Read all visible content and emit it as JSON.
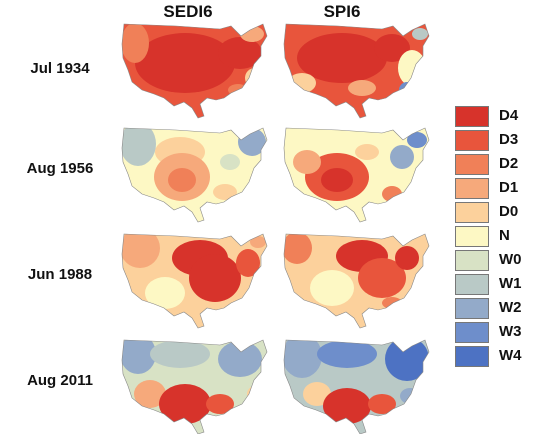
{
  "columns": [
    "SEDI6",
    "SPI6"
  ],
  "rows": [
    "Jul 1934",
    "Aug 1956",
    "Jun 1988",
    "Aug 2011"
  ],
  "legend": [
    {
      "label": "D4",
      "color": "#d7332b"
    },
    {
      "label": "D3",
      "color": "#e8553c"
    },
    {
      "label": "D2",
      "color": "#f08058"
    },
    {
      "label": "D1",
      "color": "#f6a97b"
    },
    {
      "label": "D0",
      "color": "#fcd19c"
    },
    {
      "label": "N",
      "color": "#fdf8c4"
    },
    {
      "label": "W0",
      "color": "#d8e2c5"
    },
    {
      "label": "W1",
      "color": "#b9c9c6"
    },
    {
      "label": "W2",
      "color": "#93aac9"
    },
    {
      "label": "W3",
      "color": "#6e8ecb"
    },
    {
      "label": "W4",
      "color": "#4d72c3"
    }
  ]
}
